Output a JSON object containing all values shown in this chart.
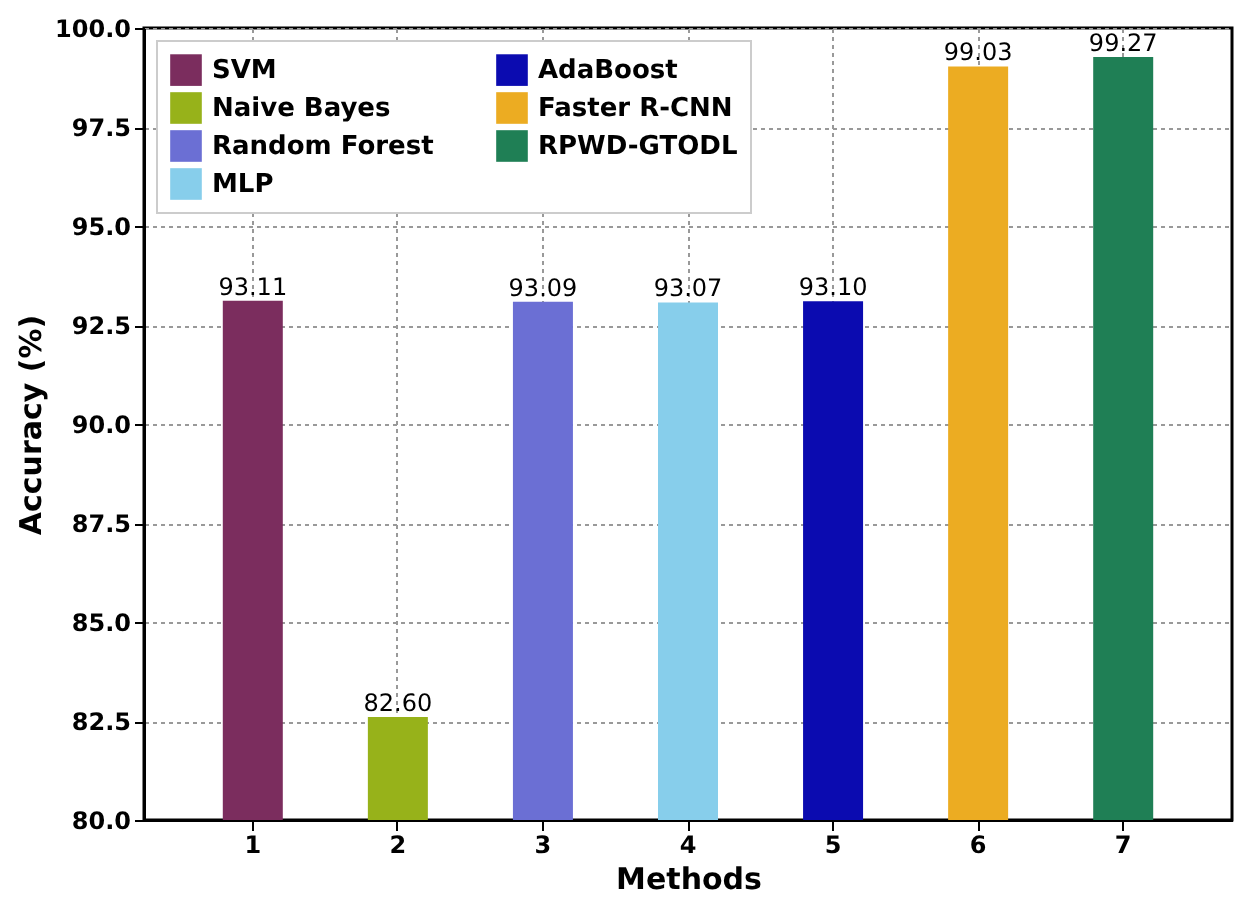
{
  "chart_data": {
    "type": "bar",
    "xlabel": "Methods",
    "ylabel": "Accuracy (%)",
    "categories": [
      "1",
      "2",
      "3",
      "4",
      "5",
      "6",
      "7"
    ],
    "series": [
      {
        "name": "SVM",
        "color": "#7b2d5e",
        "values": [
          93.11,
          null,
          null,
          null,
          null,
          null,
          null
        ],
        "value_labels": [
          "93.11",
          null,
          null,
          null,
          null,
          null,
          null
        ]
      },
      {
        "name": "Naive Bayes",
        "color": "#97b21a",
        "values": [
          null,
          82.6,
          null,
          null,
          null,
          null,
          null
        ],
        "value_labels": [
          null,
          "82.60",
          null,
          null,
          null,
          null,
          null
        ]
      },
      {
        "name": "Random Forest",
        "color": "#6b6fd4",
        "values": [
          null,
          null,
          93.09,
          null,
          null,
          null,
          null
        ],
        "value_labels": [
          null,
          null,
          "93.09",
          null,
          null,
          null,
          null
        ]
      },
      {
        "name": "MLP",
        "color": "#87ceeb",
        "values": [
          null,
          null,
          null,
          93.07,
          null,
          null,
          null
        ],
        "value_labels": [
          null,
          null,
          null,
          "93.07",
          null,
          null,
          null
        ]
      },
      {
        "name": "AdaBoost",
        "color": "#0b0bb0",
        "values": [
          null,
          null,
          null,
          null,
          93.1,
          null,
          null
        ],
        "value_labels": [
          null,
          null,
          null,
          null,
          "93.10",
          null,
          null
        ]
      },
      {
        "name": "Faster R-CNN",
        "color": "#ecac22",
        "values": [
          null,
          null,
          null,
          null,
          null,
          99.03,
          null
        ],
        "value_labels": [
          null,
          null,
          null,
          null,
          null,
          "99.03",
          null
        ]
      },
      {
        "name": "RPWD-GTODL",
        "color": "#1f7f55",
        "values": [
          null,
          null,
          null,
          null,
          null,
          null,
          99.27
        ],
        "value_labels": [
          null,
          null,
          null,
          null,
          null,
          null,
          "99.27"
        ]
      }
    ],
    "ylim": [
      80,
      100
    ],
    "yticks": [
      {
        "value": 80,
        "label": "80.0"
      },
      {
        "value": 82.5,
        "label": "82.5"
      },
      {
        "value": 85,
        "label": "85.0"
      },
      {
        "value": 87.5,
        "label": "87.5"
      },
      {
        "value": 90,
        "label": "90.0"
      },
      {
        "value": 92.5,
        "label": "92.5"
      },
      {
        "value": 95,
        "label": "95.0"
      },
      {
        "value": 97.5,
        "label": "97.5"
      },
      {
        "value": 100,
        "label": "100.0"
      }
    ],
    "grid": true,
    "legend": "top left"
  }
}
